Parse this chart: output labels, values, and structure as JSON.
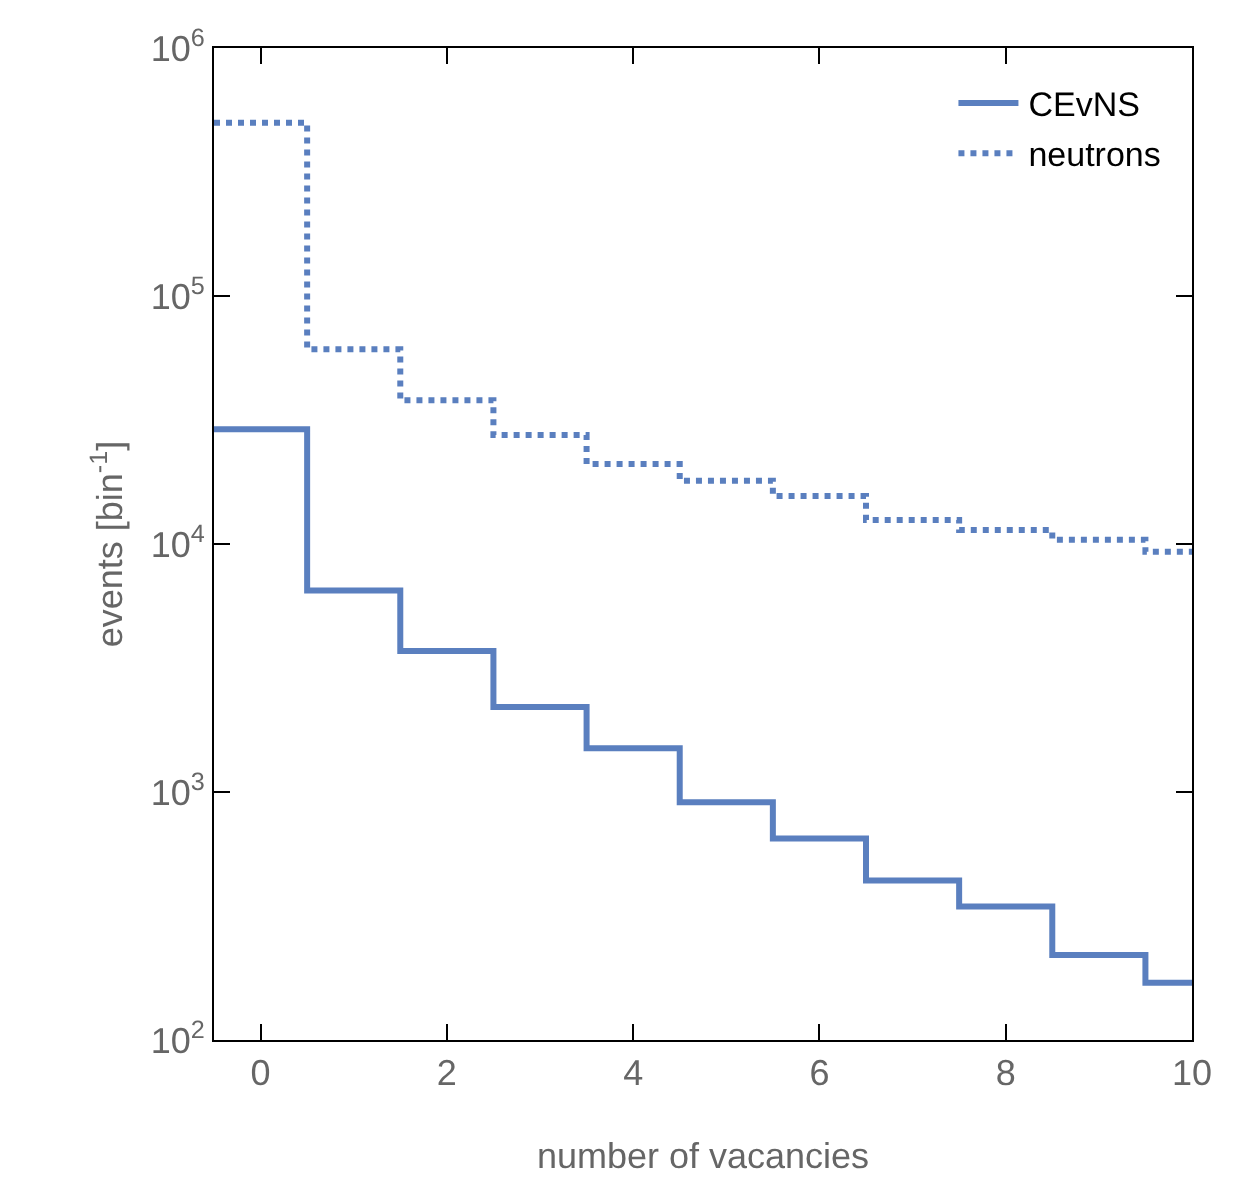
{
  "chart_data": {
    "type": "histogram",
    "xlabel": "number of vacancies",
    "ylabel": "events [bin$^{-1}$]",
    "bins": [
      -0.5,
      0.5,
      1.5,
      2.5,
      3.5,
      4.5,
      5.5,
      6.5,
      7.5,
      8.5,
      9.5,
      10.5
    ],
    "series": [
      {
        "name": "CEvNS",
        "color": "#5a7fbf",
        "line_style": "solid",
        "values": [
          29000,
          6500,
          3700,
          2200,
          1500,
          910,
          650,
          440,
          345,
          220,
          170
        ]
      },
      {
        "name": "neutrons",
        "color": "#5a7fbf",
        "line_style": "dotted",
        "values": [
          500000,
          61000,
          38000,
          27500,
          21000,
          18000,
          15600,
          12500,
          11400,
          10400,
          9300
        ]
      }
    ],
    "xlim": [
      -0.5,
      10
    ],
    "xticks": [
      0,
      2,
      4,
      6,
      8,
      10
    ],
    "log": "y",
    "ylim": [
      100,
      1000000
    ],
    "yticks": [
      {
        "value": 100,
        "label": "10$^{2}$"
      },
      {
        "value": 1000,
        "label": "10$^{3}$"
      },
      {
        "value": 10000,
        "label": "10$^{4}$"
      },
      {
        "value": 100000,
        "label": "10$^{5}$"
      },
      {
        "value": 1000000,
        "label": "10$^{6}$"
      }
    ],
    "grid": false,
    "legend": "top right"
  }
}
